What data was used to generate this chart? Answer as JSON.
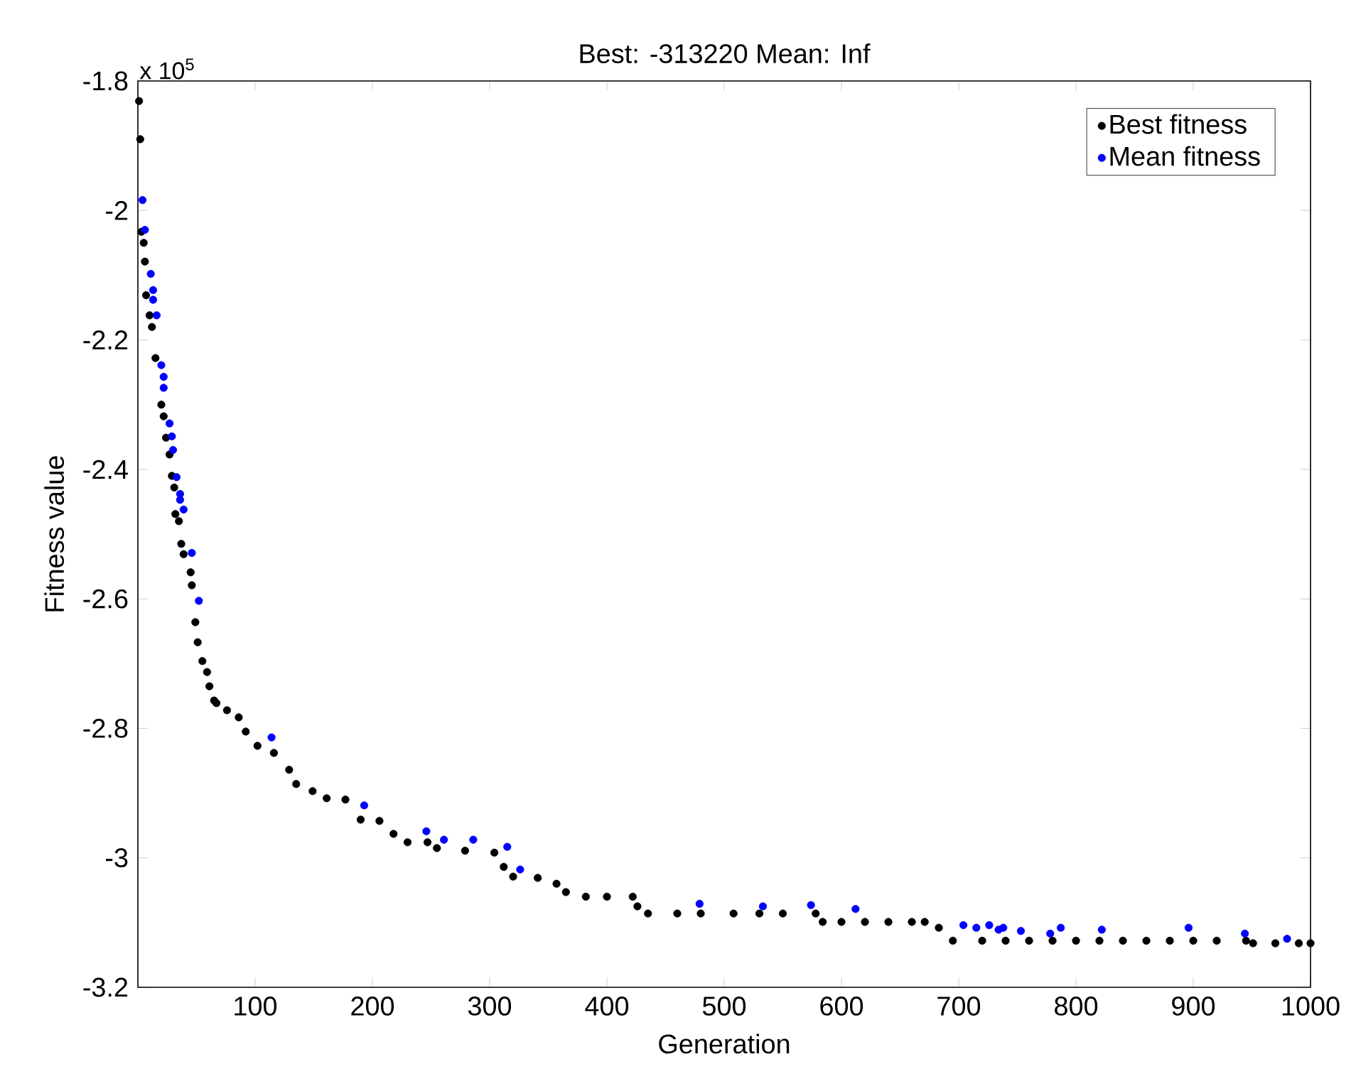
{
  "chart_data": {
    "type": "scatter",
    "title": "Best: -313220 Mean: Inf",
    "xlabel": "Generation",
    "ylabel": "Fitness value",
    "annotations": [
      "x 10$^{5}$"
    ],
    "xlim": [
      0,
      1000
    ],
    "xticks": [
      100,
      200,
      300,
      400,
      500,
      600,
      700,
      800,
      900,
      1000
    ],
    "ylim": [
      -3.2,
      -1.8
    ],
    "yticks": [
      -3.2,
      -3,
      -2.8,
      -2.6,
      -2.4,
      -2.2,
      -2,
      -1.8
    ],
    "grid": false,
    "legend": "top right",
    "marker": "circle",
    "series": [
      {
        "name": "Best fitness",
        "color": "#000000",
        "x": [
          1,
          2,
          3,
          5,
          6,
          7,
          10,
          12,
          15,
          20,
          22,
          24,
          27,
          29,
          31,
          32,
          35,
          37,
          39,
          45,
          46,
          49,
          51,
          55,
          59,
          61,
          65,
          67,
          76,
          86,
          92,
          102,
          116,
          129,
          135,
          149,
          161,
          177,
          190,
          206,
          218,
          230,
          247,
          255,
          279,
          304,
          312,
          320,
          341,
          357,
          365,
          382,
          400,
          422,
          426,
          435,
          460,
          480,
          508,
          530,
          550,
          578,
          584,
          600,
          620,
          640,
          660,
          671,
          683,
          695,
          720,
          740,
          760,
          780,
          800,
          820,
          840,
          860,
          880,
          900,
          920,
          945,
          951,
          970,
          990,
          1000
        ],
        "values": [
          -1.831,
          -1.89,
          -2.033,
          -2.05,
          -2.079,
          -2.131,
          -2.162,
          -2.18,
          -2.228,
          -2.3,
          -2.318,
          -2.351,
          -2.377,
          -2.41,
          -2.428,
          -2.469,
          -2.48,
          -2.515,
          -2.531,
          -2.559,
          -2.579,
          -2.636,
          -2.667,
          -2.696,
          -2.713,
          -2.735,
          -2.757,
          -2.761,
          -2.772,
          -2.783,
          -2.805,
          -2.827,
          -2.838,
          -2.864,
          -2.886,
          -2.897,
          -2.908,
          -2.91,
          -2.941,
          -2.943,
          -2.963,
          -2.976,
          -2.976,
          -2.985,
          -2.989,
          -2.992,
          -3.014,
          -3.029,
          -3.031,
          -3.04,
          -3.053,
          -3.06,
          -3.06,
          -3.06,
          -3.075,
          -3.086,
          -3.086,
          -3.086,
          -3.086,
          -3.086,
          -3.086,
          -3.086,
          -3.099,
          -3.099,
          -3.099,
          -3.099,
          -3.099,
          -3.099,
          -3.108,
          -3.128,
          -3.128,
          -3.128,
          -3.128,
          -3.128,
          -3.128,
          -3.128,
          -3.128,
          -3.128,
          -3.128,
          -3.128,
          -3.128,
          -3.128,
          -3.132,
          -3.132,
          -3.132,
          -3.132
        ]
      },
      {
        "name": "Mean fitness",
        "color": "#0000ff",
        "x": [
          4,
          6,
          11,
          13,
          13,
          16,
          20,
          22,
          22,
          27,
          29,
          30,
          33,
          36,
          36,
          39,
          46,
          52,
          114,
          193,
          246,
          261,
          286,
          315,
          326,
          479,
          533,
          574,
          612,
          704,
          715,
          726,
          734,
          738,
          753,
          778,
          787,
          822,
          896,
          944,
          980
        ],
        "values": [
          -1.984,
          -2.03,
          -2.098,
          -2.123,
          -2.138,
          -2.162,
          -2.239,
          -2.257,
          -2.274,
          -2.329,
          -2.349,
          -2.37,
          -2.412,
          -2.438,
          -2.447,
          -2.462,
          -2.529,
          -2.603,
          -2.814,
          -2.919,
          -2.959,
          -2.972,
          -2.972,
          -2.983,
          -3.018,
          -3.071,
          -3.075,
          -3.073,
          -3.079,
          -3.104,
          -3.108,
          -3.104,
          -3.111,
          -3.108,
          -3.113,
          -3.117,
          -3.108,
          -3.111,
          -3.108,
          -3.117,
          -3.125
        ]
      }
    ]
  }
}
